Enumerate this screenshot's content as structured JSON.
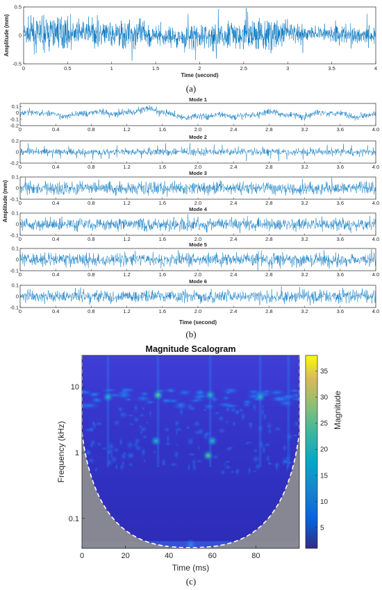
{
  "chart_data": [
    {
      "id": "a",
      "type": "line",
      "caption": "(a)",
      "xlabel": "Time (second)",
      "ylabel": "Amplitude (mm)",
      "xlim": [
        0,
        4
      ],
      "ylim": [
        -0.5,
        0.5
      ],
      "xticks": [
        "0",
        "0.5",
        "1",
        "1.5",
        "2",
        "2.5",
        "3",
        "3.5",
        "4"
      ],
      "yticks": [
        "-0.5",
        "0",
        "0.5"
      ],
      "color": "#0072BD",
      "series": [
        {
          "values": "dense noisy vibration signal, amplitude mostly within ±0.25 mm, peaks near ±0.45 mm"
        }
      ]
    },
    {
      "id": "b",
      "type": "line",
      "caption": "(b)",
      "xlabel": "Time (second)",
      "ylabel": "Amplitude (mm)",
      "xlim": [
        0,
        4
      ],
      "xticks": [
        "0",
        "0.4",
        "0.8",
        "1.2",
        "1.6",
        "2.0",
        "2.4",
        "2.8",
        "3.2",
        "3.6",
        "4.0"
      ],
      "color": "#0072BD",
      "modes": [
        {
          "title": "Mode 1",
          "yticks": [
            "0.1",
            "0",
            "-0.1",
            "-0.2"
          ],
          "ylim": [
            -0.2,
            0.15
          ]
        },
        {
          "title": "Mode 2",
          "yticks": [
            "0.2",
            "0",
            "-0.2"
          ],
          "ylim": [
            -0.2,
            0.2
          ]
        },
        {
          "title": "Mode 3",
          "yticks": [
            "0.1",
            "0",
            "-0.1"
          ],
          "ylim": [
            -0.1,
            0.1
          ]
        },
        {
          "title": "Mode 4",
          "yticks": [
            "0.1",
            "0",
            "-0.1"
          ],
          "ylim": [
            -0.1,
            0.1
          ]
        },
        {
          "title": "Mode 5",
          "yticks": [
            "0.1",
            "0",
            "-0.1"
          ],
          "ylim": [
            -0.1,
            0.1
          ]
        },
        {
          "title": "Mode 6",
          "yticks": [
            "0.1",
            "0",
            "-0.1"
          ],
          "ylim": [
            -0.1,
            0.1
          ]
        }
      ]
    },
    {
      "id": "c",
      "type": "heatmap",
      "caption": "(c)",
      "title": "Magnitude Scalogram",
      "xlabel": "Time (ms)",
      "ylabel": "Frequency (kHz)",
      "xlim": [
        0,
        100
      ],
      "xticks": [
        "0",
        "20",
        "40",
        "60",
        "80"
      ],
      "yscale": "log",
      "ylim": [
        0.035,
        30
      ],
      "yticks": [
        "10",
        "1",
        "0.1"
      ],
      "colorbar": {
        "label": "Magnitude",
        "ticks": [
          "35",
          "30",
          "25",
          "20",
          "15",
          "10",
          "5"
        ],
        "range": [
          1,
          38
        ]
      },
      "highlights": [
        {
          "t_ms": 35,
          "f_khz": 7.5,
          "magnitude": 10
        },
        {
          "t_ms": 59,
          "f_khz": 7.5,
          "magnitude": 9
        },
        {
          "t_ms": 82,
          "f_khz": 7.0,
          "magnitude": 9
        },
        {
          "t_ms": 12,
          "f_khz": 7.0,
          "magnitude": 8
        },
        {
          "t_ms": 34,
          "f_khz": 1.5,
          "magnitude": 9
        },
        {
          "t_ms": 60,
          "f_khz": 1.5,
          "magnitude": 9
        },
        {
          "t_ms": 58,
          "f_khz": 0.9,
          "magnitude": 10
        },
        {
          "t_ms": 50,
          "f_khz": 0.04,
          "magnitude": 9
        }
      ],
      "coi": "dashed white cone of influence, outside region greyed"
    }
  ]
}
